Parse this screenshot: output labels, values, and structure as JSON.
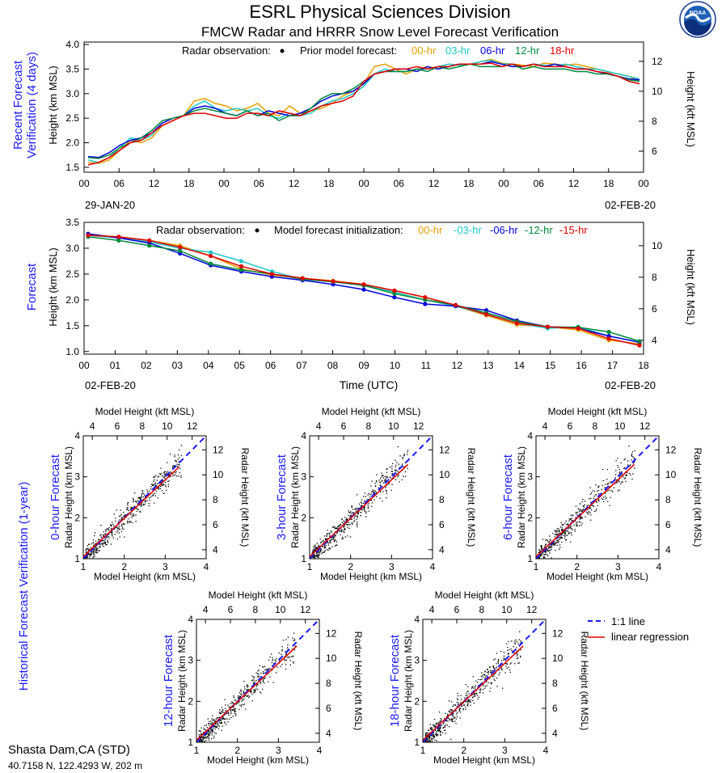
{
  "header": {
    "title": "ESRL Physical Sciences Division",
    "subtitle": "FMCW Radar and HRRR Snow Level Forecast Verification",
    "logo_text": "NOAA"
  },
  "station": {
    "name": "Shasta Dam,CA (STD)",
    "coords": "40.7158 N, 122.4293 W, 202 m"
  },
  "colors": {
    "obs": "#000000",
    "h00": "#e69f00",
    "h03": "#1ec8c8",
    "h06": "#0000dd",
    "h12": "#008a3c",
    "h18": "#e00000",
    "h15": "#e00000",
    "side_label": "#1a1aff",
    "one_to_one": "#1a1aff",
    "regression": "#e00000"
  },
  "legend": {
    "onetoone": "1:1 line",
    "regression": "linear regression"
  },
  "chart_data": [
    {
      "id": "recent",
      "type": "line",
      "side_label": [
        "Recent Forecast",
        "Verification (4 days)"
      ],
      "ylabel": "Height (km MSL)",
      "ylabel_right": "Height (kft MSL)",
      "ylim": [
        1.4,
        4.05
      ],
      "yticks": [
        "1.5",
        "2.0",
        "2.5",
        "3.0",
        "3.5",
        "4.0"
      ],
      "yticks_right": [
        "6",
        "8",
        "10",
        "12"
      ],
      "xticks": [
        "00",
        "06",
        "12",
        "18",
        "00",
        "06",
        "12",
        "18",
        "00",
        "06",
        "12",
        "18",
        "00",
        "06",
        "12",
        "18",
        "00"
      ],
      "date_left": "29-JAN-20",
      "date_right": "02-FEB-20",
      "legend": {
        "obs_label": "Radar observation:",
        "fc_label": "Prior model forecast:",
        "items": [
          "00-hr",
          "03-hr",
          "06-hr",
          "12-hr",
          "18-hr"
        ]
      },
      "series": [
        {
          "name": "00-hr",
          "color_key": "h00",
          "values": [
            1.6,
            1.58,
            1.65,
            1.85,
            2.05,
            2.0,
            2.1,
            2.35,
            2.45,
            2.55,
            2.85,
            2.9,
            2.8,
            2.75,
            2.65,
            2.7,
            2.8,
            2.6,
            2.55,
            2.75,
            2.6,
            2.65,
            2.7,
            2.8,
            2.95,
            3.05,
            3.2,
            3.55,
            3.6,
            3.5,
            3.4,
            3.5,
            3.55,
            3.5,
            3.55,
            3.6,
            3.6,
            3.65,
            3.7,
            3.62,
            3.6,
            3.58,
            3.55,
            3.62,
            3.6,
            3.58,
            3.6,
            3.55,
            3.5,
            3.45,
            3.4,
            3.35,
            3.25
          ]
        },
        {
          "name": "03-hr",
          "color_key": "h03",
          "values": [
            1.65,
            1.6,
            1.7,
            1.9,
            2.1,
            2.05,
            2.15,
            2.4,
            2.5,
            2.55,
            2.75,
            2.85,
            2.7,
            2.65,
            2.7,
            2.65,
            2.7,
            2.55,
            2.5,
            2.6,
            2.55,
            2.6,
            2.75,
            2.85,
            2.9,
            3.0,
            3.15,
            3.4,
            3.5,
            3.45,
            3.45,
            3.5,
            3.5,
            3.55,
            3.6,
            3.58,
            3.6,
            3.65,
            3.68,
            3.6,
            3.6,
            3.55,
            3.6,
            3.58,
            3.55,
            3.6,
            3.55,
            3.5,
            3.5,
            3.45,
            3.4,
            3.35,
            3.3
          ]
        },
        {
          "name": "06-hr",
          "color_key": "h06",
          "values": [
            1.72,
            1.7,
            1.8,
            1.95,
            2.05,
            2.1,
            2.2,
            2.4,
            2.5,
            2.55,
            2.7,
            2.75,
            2.7,
            2.6,
            2.55,
            2.65,
            2.55,
            2.65,
            2.6,
            2.55,
            2.6,
            2.7,
            2.85,
            2.95,
            3.0,
            3.05,
            3.2,
            3.4,
            3.45,
            3.5,
            3.5,
            3.45,
            3.55,
            3.5,
            3.55,
            3.6,
            3.6,
            3.6,
            3.65,
            3.6,
            3.55,
            3.55,
            3.6,
            3.55,
            3.6,
            3.55,
            3.5,
            3.5,
            3.45,
            3.4,
            3.35,
            3.3,
            3.28
          ]
        },
        {
          "name": "12-hr",
          "color_key": "h12",
          "values": [
            1.7,
            1.68,
            1.75,
            1.9,
            2.0,
            2.1,
            2.25,
            2.45,
            2.5,
            2.55,
            2.65,
            2.7,
            2.65,
            2.6,
            2.55,
            2.65,
            2.55,
            2.6,
            2.45,
            2.55,
            2.55,
            2.7,
            2.9,
            3.0,
            3.0,
            3.1,
            3.25,
            3.4,
            3.45,
            3.45,
            3.45,
            3.5,
            3.45,
            3.55,
            3.5,
            3.55,
            3.6,
            3.55,
            3.55,
            3.55,
            3.6,
            3.5,
            3.55,
            3.5,
            3.5,
            3.5,
            3.45,
            3.45,
            3.4,
            3.4,
            3.35,
            3.28,
            3.25
          ]
        },
        {
          "name": "18-hr",
          "color_key": "h18",
          "values": [
            1.55,
            1.6,
            1.7,
            1.85,
            2.0,
            2.05,
            2.2,
            2.35,
            2.45,
            2.55,
            2.6,
            2.6,
            2.55,
            2.5,
            2.5,
            2.6,
            2.6,
            2.55,
            2.65,
            2.6,
            2.55,
            2.65,
            2.75,
            2.8,
            2.85,
            2.95,
            3.25,
            3.4,
            3.45,
            3.5,
            3.5,
            3.55,
            3.5,
            3.55,
            3.55,
            3.6,
            3.6,
            3.6,
            3.62,
            3.55,
            3.6,
            3.55,
            3.6,
            3.55,
            3.55,
            3.55,
            3.5,
            3.5,
            3.45,
            3.42,
            3.35,
            3.25,
            3.2
          ]
        }
      ]
    },
    {
      "id": "forecast",
      "type": "line",
      "side_label": [
        "Forecast"
      ],
      "ylabel": "Height (km MSL)",
      "ylabel_right": "Height (kft MSL)",
      "xlabel": "Time (UTC)",
      "ylim": [
        0.95,
        3.5
      ],
      "yticks": [
        "1.0",
        "1.5",
        "2.0",
        "2.5",
        "3.0",
        "3.5"
      ],
      "yticks_right": [
        "4",
        "6",
        "8",
        "10"
      ],
      "xticks": [
        "00",
        "01",
        "02",
        "03",
        "04",
        "05",
        "06",
        "07",
        "08",
        "09",
        "10",
        "11",
        "12",
        "13",
        "14",
        "15",
        "16",
        "17",
        "18"
      ],
      "date_left": "02-FEB-20",
      "date_right": "02-FEB-20",
      "legend": {
        "obs_label": "Radar observation:",
        "fc_label": "Model forecast initialization:",
        "items": [
          "00-hr",
          "-03-hr",
          "-06-hr",
          "-12-hr",
          "-15-hr"
        ]
      },
      "series": [
        {
          "name": "00-hr",
          "color_key": "h00",
          "values": [
            3.25,
            3.22,
            3.15,
            3.05,
            2.85,
            2.6,
            2.48,
            2.42,
            2.37,
            2.3,
            2.18,
            2.05,
            1.88,
            1.7,
            1.52,
            1.48,
            1.42,
            1.22,
            1.15
          ]
        },
        {
          "name": "-03-hr",
          "color_key": "h03",
          "values": [
            3.25,
            3.2,
            3.12,
            3.0,
            2.92,
            2.75,
            2.55,
            2.4,
            2.35,
            2.28,
            2.15,
            2.0,
            1.88,
            1.72,
            1.55,
            1.45,
            1.48,
            1.3,
            1.18
          ]
        },
        {
          "name": "-06-hr",
          "color_key": "h06",
          "values": [
            3.28,
            3.2,
            3.1,
            2.9,
            2.67,
            2.55,
            2.45,
            2.38,
            2.3,
            2.2,
            2.05,
            1.92,
            1.88,
            1.8,
            1.6,
            1.48,
            1.45,
            1.3,
            1.18
          ]
        },
        {
          "name": "-12-hr",
          "color_key": "h12",
          "values": [
            3.22,
            3.15,
            3.05,
            2.95,
            2.7,
            2.58,
            2.5,
            2.4,
            2.35,
            2.28,
            2.12,
            2.0,
            1.9,
            1.75,
            1.58,
            1.48,
            1.47,
            1.38,
            1.2
          ]
        },
        {
          "name": "-15-hr",
          "color_key": "h15",
          "values": [
            3.25,
            3.22,
            3.15,
            3.02,
            2.85,
            2.65,
            2.5,
            2.42,
            2.36,
            2.3,
            2.18,
            2.05,
            1.9,
            1.72,
            1.55,
            1.48,
            1.45,
            1.25,
            1.12
          ]
        }
      ]
    }
  ],
  "historical": {
    "side_label": "Historical Forecast Verification (1-year)",
    "xlabel": "Model Height (km MSL)",
    "xlabel_top": "Model Height (kft MSL)",
    "ylabel": "Radar Height (km MSL)",
    "ylabel_right": "Radar Height (kft MSL)",
    "ticks_km": [
      "1",
      "2",
      "3",
      "4"
    ],
    "ticks_top": [
      "4",
      "6",
      "8",
      "10",
      "12"
    ],
    "ticks_right": [
      "4",
      "6",
      "8",
      "10",
      "12"
    ],
    "panels": [
      {
        "title": "0-hour Forecast",
        "reg_end": 3.25
      },
      {
        "title": "3-hour Forecast",
        "reg_end": 3.3
      },
      {
        "title": "6-hour Forecast",
        "reg_end": 3.3
      },
      {
        "title": "12-hour Forecast",
        "reg_end": 3.35
      },
      {
        "title": "18-hour Forecast",
        "reg_end": 3.35
      }
    ]
  }
}
